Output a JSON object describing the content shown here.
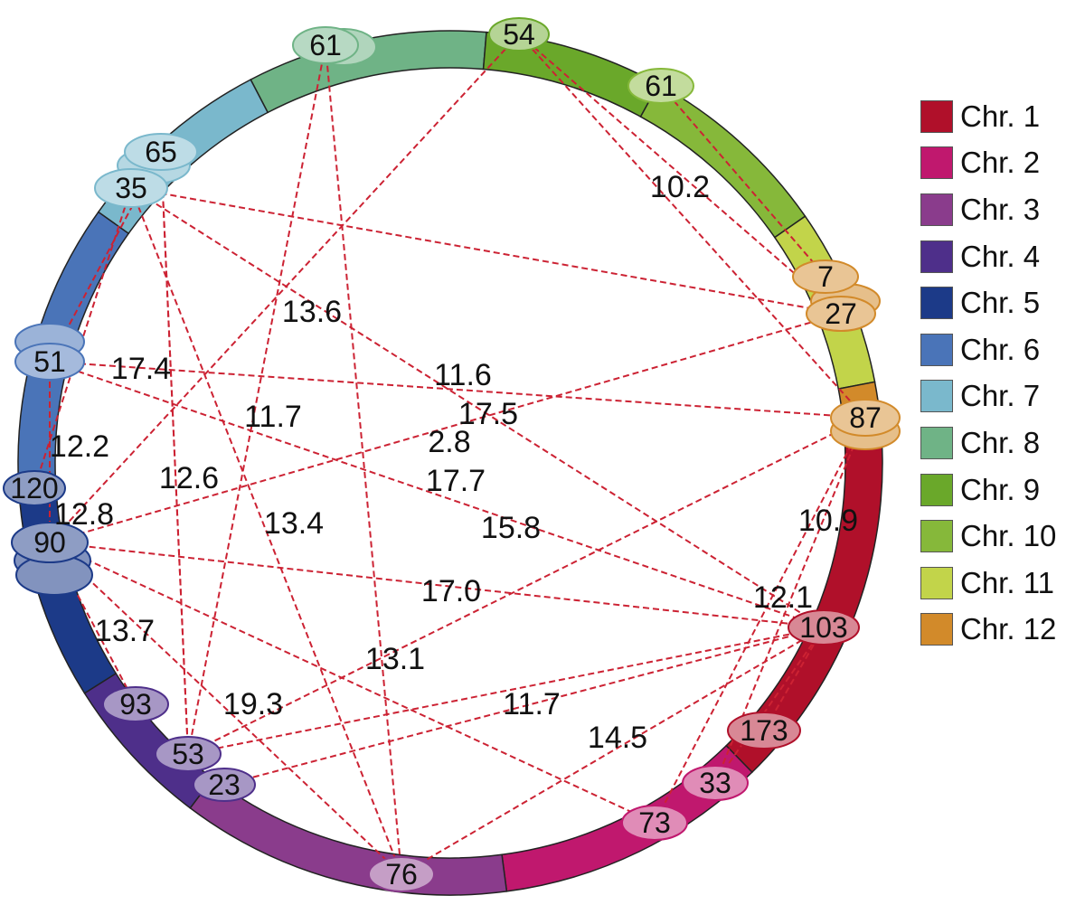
{
  "chromosomes": [
    {
      "label": "Chr. 1",
      "color": "#b0102a"
    },
    {
      "label": "Chr. 2",
      "color": "#c0186e"
    },
    {
      "label": "Chr. 3",
      "color": "#8a3c8c"
    },
    {
      "label": "Chr. 4",
      "color": "#4e2f8a"
    },
    {
      "label": "Chr. 5",
      "color": "#1c3a88"
    },
    {
      "label": "Chr. 6",
      "color": "#4a74b8"
    },
    {
      "label": "Chr. 7",
      "color": "#7ab8cc"
    },
    {
      "label": "Chr. 8",
      "color": "#6fb386"
    },
    {
      "label": "Chr. 9",
      "color": "#6aa82a"
    },
    {
      "label": "Chr. 10",
      "color": "#86b83a"
    },
    {
      "label": "Chr. 11",
      "color": "#c2d44a"
    },
    {
      "label": "Chr. 12",
      "color": "#d28a2a"
    }
  ],
  "markers": [
    {
      "id": "m1",
      "label": "54",
      "chr": 9
    },
    {
      "id": "m2",
      "label": "61",
      "chr": 10
    },
    {
      "id": "m3",
      "label": "61",
      "chr": 8
    },
    {
      "id": "m4",
      "label": "65",
      "chr": 7
    },
    {
      "id": "m5",
      "label": "35",
      "chr": 7
    },
    {
      "id": "m6",
      "label": "51",
      "chr": 6
    },
    {
      "id": "m7",
      "label": "120",
      "chr": 5
    },
    {
      "id": "m8",
      "label": "90",
      "chr": 5
    },
    {
      "id": "m9",
      "label": "93",
      "chr": 4
    },
    {
      "id": "m10",
      "label": "53",
      "chr": 4
    },
    {
      "id": "m11",
      "label": "23",
      "chr": 4
    },
    {
      "id": "m12",
      "label": "76",
      "chr": 3
    },
    {
      "id": "m13",
      "label": "73",
      "chr": 2
    },
    {
      "id": "m14",
      "label": "33",
      "chr": 2
    },
    {
      "id": "m15",
      "label": "173",
      "chr": 1
    },
    {
      "id": "m16",
      "label": "103",
      "chr": 1
    },
    {
      "id": "m17",
      "label": "87",
      "chr": 12
    },
    {
      "id": "m18",
      "label": "27",
      "chr": 12
    },
    {
      "id": "m19",
      "label": "7",
      "chr": 12
    }
  ],
  "link_labels": [
    "10.2",
    "13.6",
    "17.4",
    "11.6",
    "17.5",
    "11.7",
    "2.8",
    "12.2",
    "12.6",
    "17.7",
    "12.8",
    "13.4",
    "15.8",
    "10.9",
    "17.0",
    "12.1",
    "13.7",
    "13.1",
    "19.3",
    "11.7",
    "14.5"
  ]
}
